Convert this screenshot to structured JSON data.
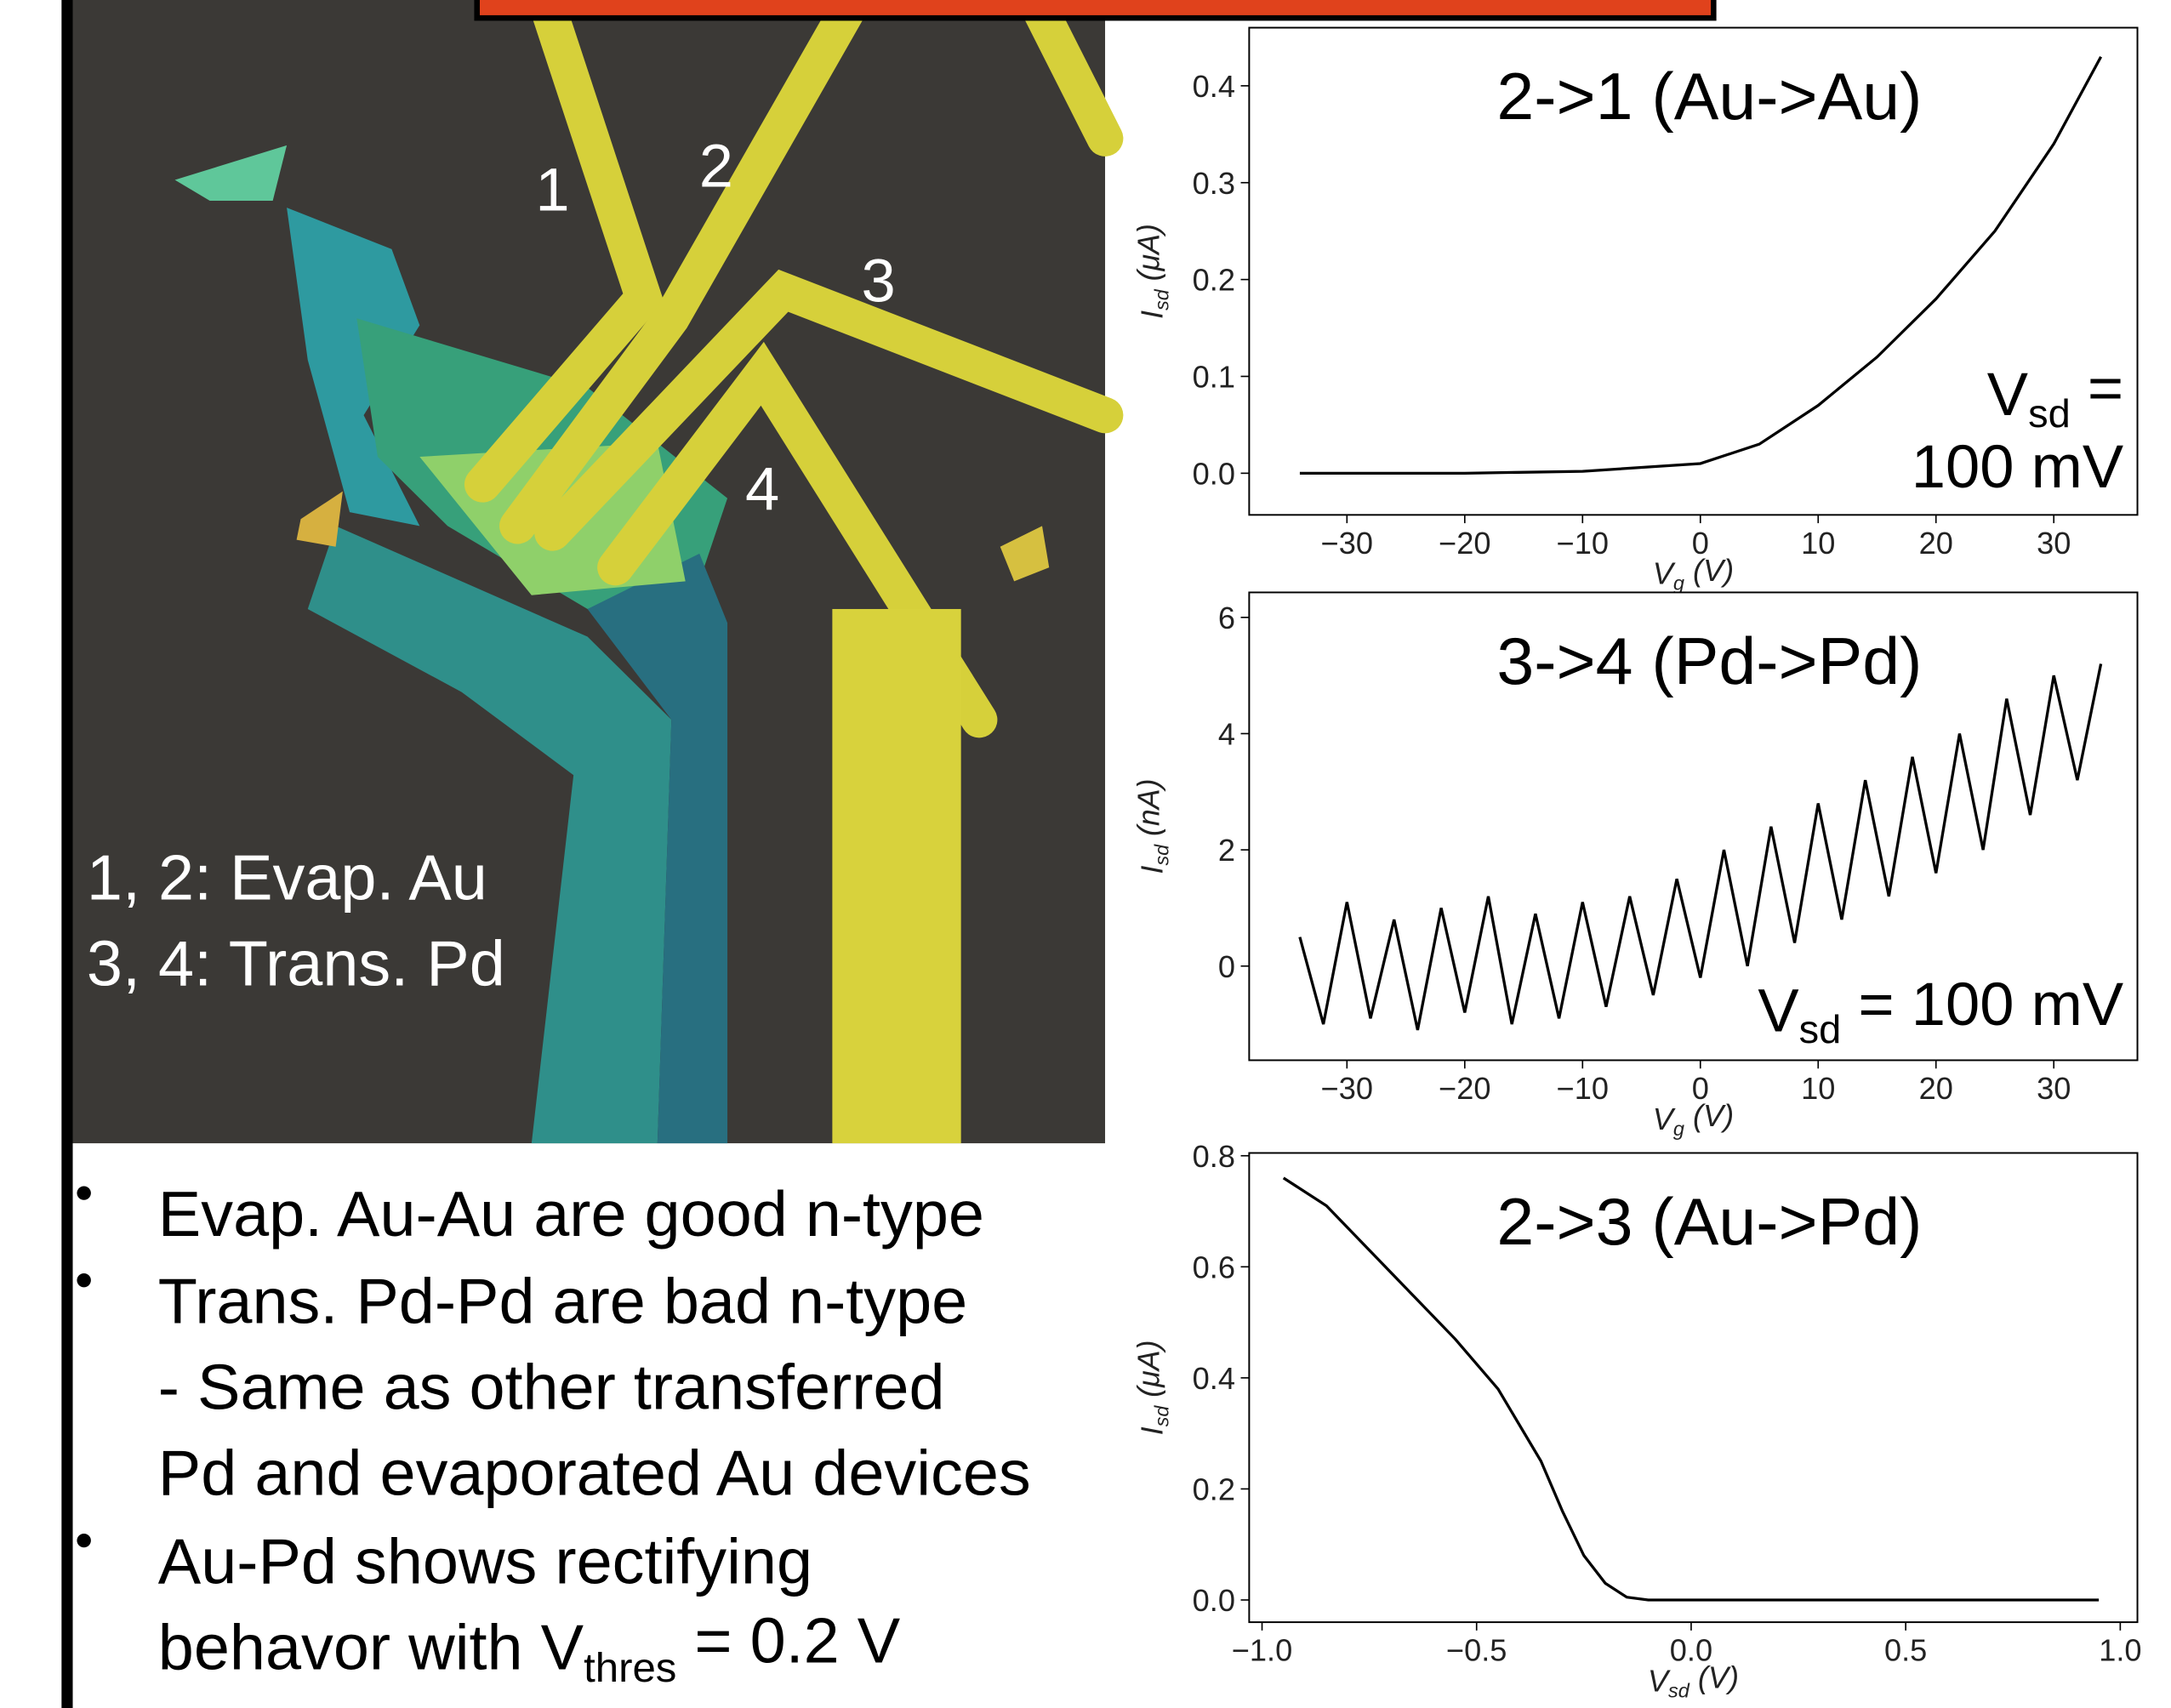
{
  "chart_data": [
    {
      "type": "line",
      "title": "2->1 (Au->Au)",
      "xlabel": [
        "V",
        "g",
        " (V)"
      ],
      "ylabel": [
        "I",
        "sd",
        " (μA)"
      ],
      "annotation": [
        [
          "V",
          "sd",
          " ="
        ],
        [
          "100 mV"
        ]
      ],
      "color": "#000000",
      "x": [
        -34,
        -20,
        -10,
        0,
        5,
        10,
        15,
        20,
        25,
        30,
        34
      ],
      "values": [
        0,
        0,
        0.002,
        0.01,
        0.03,
        0.07,
        0.12,
        0.18,
        0.25,
        0.34,
        0.43
      ],
      "xlim": [
        -38.3,
        37.1
      ],
      "ylim": [
        -0.043,
        0.46
      ],
      "xticks": [
        {
          "value": -30,
          "label": "−30"
        },
        {
          "value": -20,
          "label": "−20"
        },
        {
          "value": -10,
          "label": "−10"
        },
        0,
        10,
        20,
        30
      ],
      "yticks": [
        {
          "value": 0,
          "label": "0.0"
        },
        0.1,
        0.2,
        0.3,
        0.4
      ]
    },
    {
      "type": "line",
      "title": "3->4 (Pd->Pd)",
      "xlabel": [
        "V",
        "g",
        " (V)"
      ],
      "ylabel": [
        "I",
        "sd",
        " (nA)"
      ],
      "annotation": [
        [
          "V",
          "sd",
          " = 100 mV"
        ]
      ],
      "color": "#000000",
      "x": [
        -34,
        -32,
        -30,
        -28,
        -26,
        -24,
        -22,
        -20,
        -18,
        -16,
        -14,
        -12,
        -10,
        -8,
        -6,
        -4,
        -2,
        0,
        2,
        4,
        6,
        8,
        10,
        12,
        14,
        16,
        18,
        20,
        22,
        24,
        26,
        28,
        30,
        32,
        34
      ],
      "values": [
        0.5,
        -1.0,
        1.1,
        -0.9,
        0.8,
        -1.1,
        1.0,
        -0.8,
        1.2,
        -1.0,
        0.9,
        -0.9,
        1.1,
        -0.7,
        1.2,
        -0.5,
        1.5,
        -0.2,
        2.0,
        0.0,
        2.4,
        0.4,
        2.8,
        0.8,
        3.2,
        1.2,
        3.6,
        1.6,
        4.0,
        2.0,
        4.6,
        2.6,
        5.0,
        3.2,
        5.2
      ],
      "xlim": [
        -38.3,
        37.1
      ],
      "ylim": [
        -1.62,
        6.43
      ],
      "xticks": [
        {
          "value": -30,
          "label": "−30"
        },
        {
          "value": -20,
          "label": "−20"
        },
        {
          "value": -10,
          "label": "−10"
        },
        0,
        10,
        20,
        30
      ],
      "yticks": [
        0,
        2,
        4,
        6
      ]
    },
    {
      "type": "line",
      "title": "2->3 (Au->Pd)",
      "xlabel": [
        "V",
        "sd",
        " (V)"
      ],
      "ylabel": [
        "I",
        "sd",
        " (μA)"
      ],
      "color": "#000000",
      "x": [
        -0.95,
        -0.85,
        -0.75,
        -0.65,
        -0.55,
        -0.45,
        -0.35,
        -0.3,
        -0.25,
        -0.2,
        -0.15,
        -0.1,
        0,
        0.5,
        0.95
      ],
      "values": [
        0.76,
        0.71,
        0.63,
        0.55,
        0.47,
        0.38,
        0.25,
        0.16,
        0.08,
        0.03,
        0.005,
        0,
        0,
        0,
        0
      ],
      "xlim": [
        -1.03,
        1.04
      ],
      "ylim": [
        -0.04,
        0.805
      ],
      "xticks": [
        {
          "value": -1,
          "label": "−1.0"
        },
        {
          "value": -0.5,
          "label": "−0.5"
        },
        {
          "value": 0,
          "label": "0.0"
        },
        0.5,
        {
          "value": 1,
          "label": "1.0"
        }
      ],
      "yticks": [
        {
          "value": 0,
          "label": "0.0"
        },
        0.2,
        0.4,
        0.6,
        0.8
      ]
    }
  ],
  "slide": {
    "image_labels": [
      "1",
      "2",
      "3",
      "4"
    ],
    "image_legend": [
      "1, 2: Evap. Au",
      "3, 4: Trans. Pd"
    ],
    "bullets": [
      {
        "lines": [
          [
            "Evap. Au-Au are good n-type"
          ]
        ]
      },
      {
        "lines": [
          [
            "Trans. Pd-Pd are bad n-type"
          ],
          [
            "- Same as other transferred"
          ],
          [
            "Pd and evaporated Au devices"
          ]
        ]
      },
      {
        "lines": [
          [
            "Au-Pd shows rectifying"
          ],
          [
            "behavor with V",
            "thres",
            " = 0.2 V"
          ]
        ]
      }
    ]
  }
}
